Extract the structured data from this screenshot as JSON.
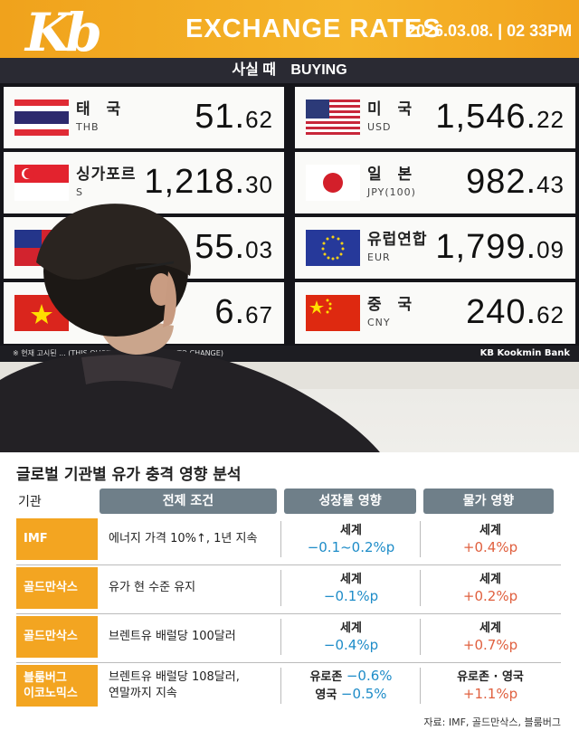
{
  "board": {
    "logo": "Kb",
    "title": "EXCHANGE RATES",
    "datetime": "2026.03.08. | 02 33PM",
    "sub_ko": "사실 때",
    "sub_en": "BUYING",
    "footer_note": "※ 현재 고시된 ... (THIS QUOTATION IS SUBJECT TO CHANGE)",
    "bank": "KB Kookmin Bank",
    "rates": [
      {
        "name": "태 국",
        "code": "THB",
        "int": "51.",
        "dec": "62",
        "flag": "thailand-flag"
      },
      {
        "name": "미 국",
        "code": "USD",
        "int": "1,546.",
        "dec": "22",
        "flag": "usa-flag"
      },
      {
        "name": "싱가포르",
        "code": "S",
        "int": "1,218.",
        "dec": "30",
        "flag": "singapore-flag"
      },
      {
        "name": "일 본",
        "code": "JPY(100)",
        "int": "982.",
        "dec": "43",
        "flag": "japan-flag"
      },
      {
        "name": "",
        "code": "",
        "int": "55.",
        "dec": "03",
        "flag": "taiwan-flag"
      },
      {
        "name": "유럽연합",
        "code": "EUR",
        "int": "1,799.",
        "dec": "09",
        "flag": "eu-flag"
      },
      {
        "name": "",
        "code": "",
        "int": "6.",
        "dec": "67",
        "flag": "vietnam-flag"
      },
      {
        "name": "중 국",
        "code": "CNY",
        "int": "240.",
        "dec": "62",
        "flag": "china-flag"
      }
    ]
  },
  "table": {
    "title": "글로벌 기관별 유가 충격 영향 분석",
    "headers": {
      "org": "기관",
      "cond": "전제 조건",
      "growth": "성장률 영향",
      "price": "물가 영향"
    },
    "rows": [
      {
        "org": "IMF",
        "cond": "에너지 가격 10%↑, 1년 지속",
        "growth_label": "세계",
        "growth_value": "−0.1~0.2%p",
        "price_label": "세계",
        "price_value": "+0.4%p"
      },
      {
        "org": "골드만삭스",
        "cond": "유가 현 수준 유지",
        "growth_label": "세계",
        "growth_value": "−0.1%p",
        "price_label": "세계",
        "price_value": "+0.2%p"
      },
      {
        "org": "골드만삭스",
        "cond": "브렌트유 배럴당 100달러",
        "growth_label": "세계",
        "growth_value": "−0.4%p",
        "price_label": "세계",
        "price_value": "+0.7%p"
      },
      {
        "org_line1": "블룸버그",
        "org_line2": "이코노믹스",
        "cond_line1": "브렌트유 배럴당 108달러,",
        "cond_line2": "연말까지 지속",
        "growth_line1_label": "유로존 ",
        "growth_line1_value": "−0.6%",
        "growth_line2_label": "영국 ",
        "growth_line2_value": "−0.5%",
        "price_label": "유로존 · 영국",
        "price_value": "+1.1%p"
      }
    ],
    "source": "자료: IMF, 골드만삭스, 블룸버그"
  },
  "colors": {
    "accent": "#f3a521",
    "header": "#6f7f89",
    "growth": "#1e8cc8",
    "price": "#e0603f"
  }
}
